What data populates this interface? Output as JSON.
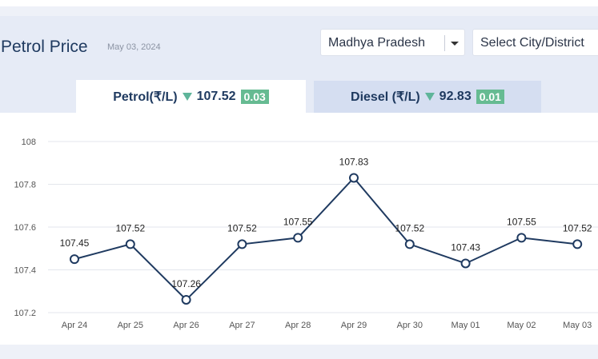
{
  "header": {
    "title": "Petrol Price",
    "date": "May 03, 2024"
  },
  "filters": {
    "state": "Madhya Pradesh",
    "city_placeholder": "Select City/District"
  },
  "tabs": {
    "petrol": {
      "label": "Petrol(₹/L)",
      "price": "107.52",
      "change": "0.03"
    },
    "diesel": {
      "label": "Diesel (₹/L)",
      "price": "92.83",
      "change": "0.01"
    }
  },
  "colors": {
    "line": "#1f3a60",
    "change_badge": "#66bb92",
    "down_arrow": "#5fb59a"
  },
  "icons": {
    "dropdown": "chevron-down-icon",
    "trend": "down-triangle-icon"
  },
  "chart_data": {
    "type": "line",
    "categories": [
      "Apr 24",
      "Apr 25",
      "Apr 26",
      "Apr 27",
      "Apr 28",
      "Apr 29",
      "Apr 30",
      "May 01",
      "May 02",
      "May 03"
    ],
    "series": [
      {
        "values": [
          107.45,
          107.52,
          107.26,
          107.52,
          107.55,
          107.83,
          107.52,
          107.43,
          107.55,
          107.52
        ]
      }
    ],
    "data_labels": [
      "107.45",
      "107.52",
      "107.26",
      "107.52",
      "107.55",
      "107.83",
      "107.52",
      "107.43",
      "107.55",
      "107.52"
    ],
    "y_ticks": [
      "108",
      "107.8",
      "107.6",
      "107.4",
      "107.2"
    ],
    "ylim": [
      107.2,
      108
    ],
    "grid": true,
    "title": "",
    "xlabel": "",
    "ylabel": ""
  }
}
